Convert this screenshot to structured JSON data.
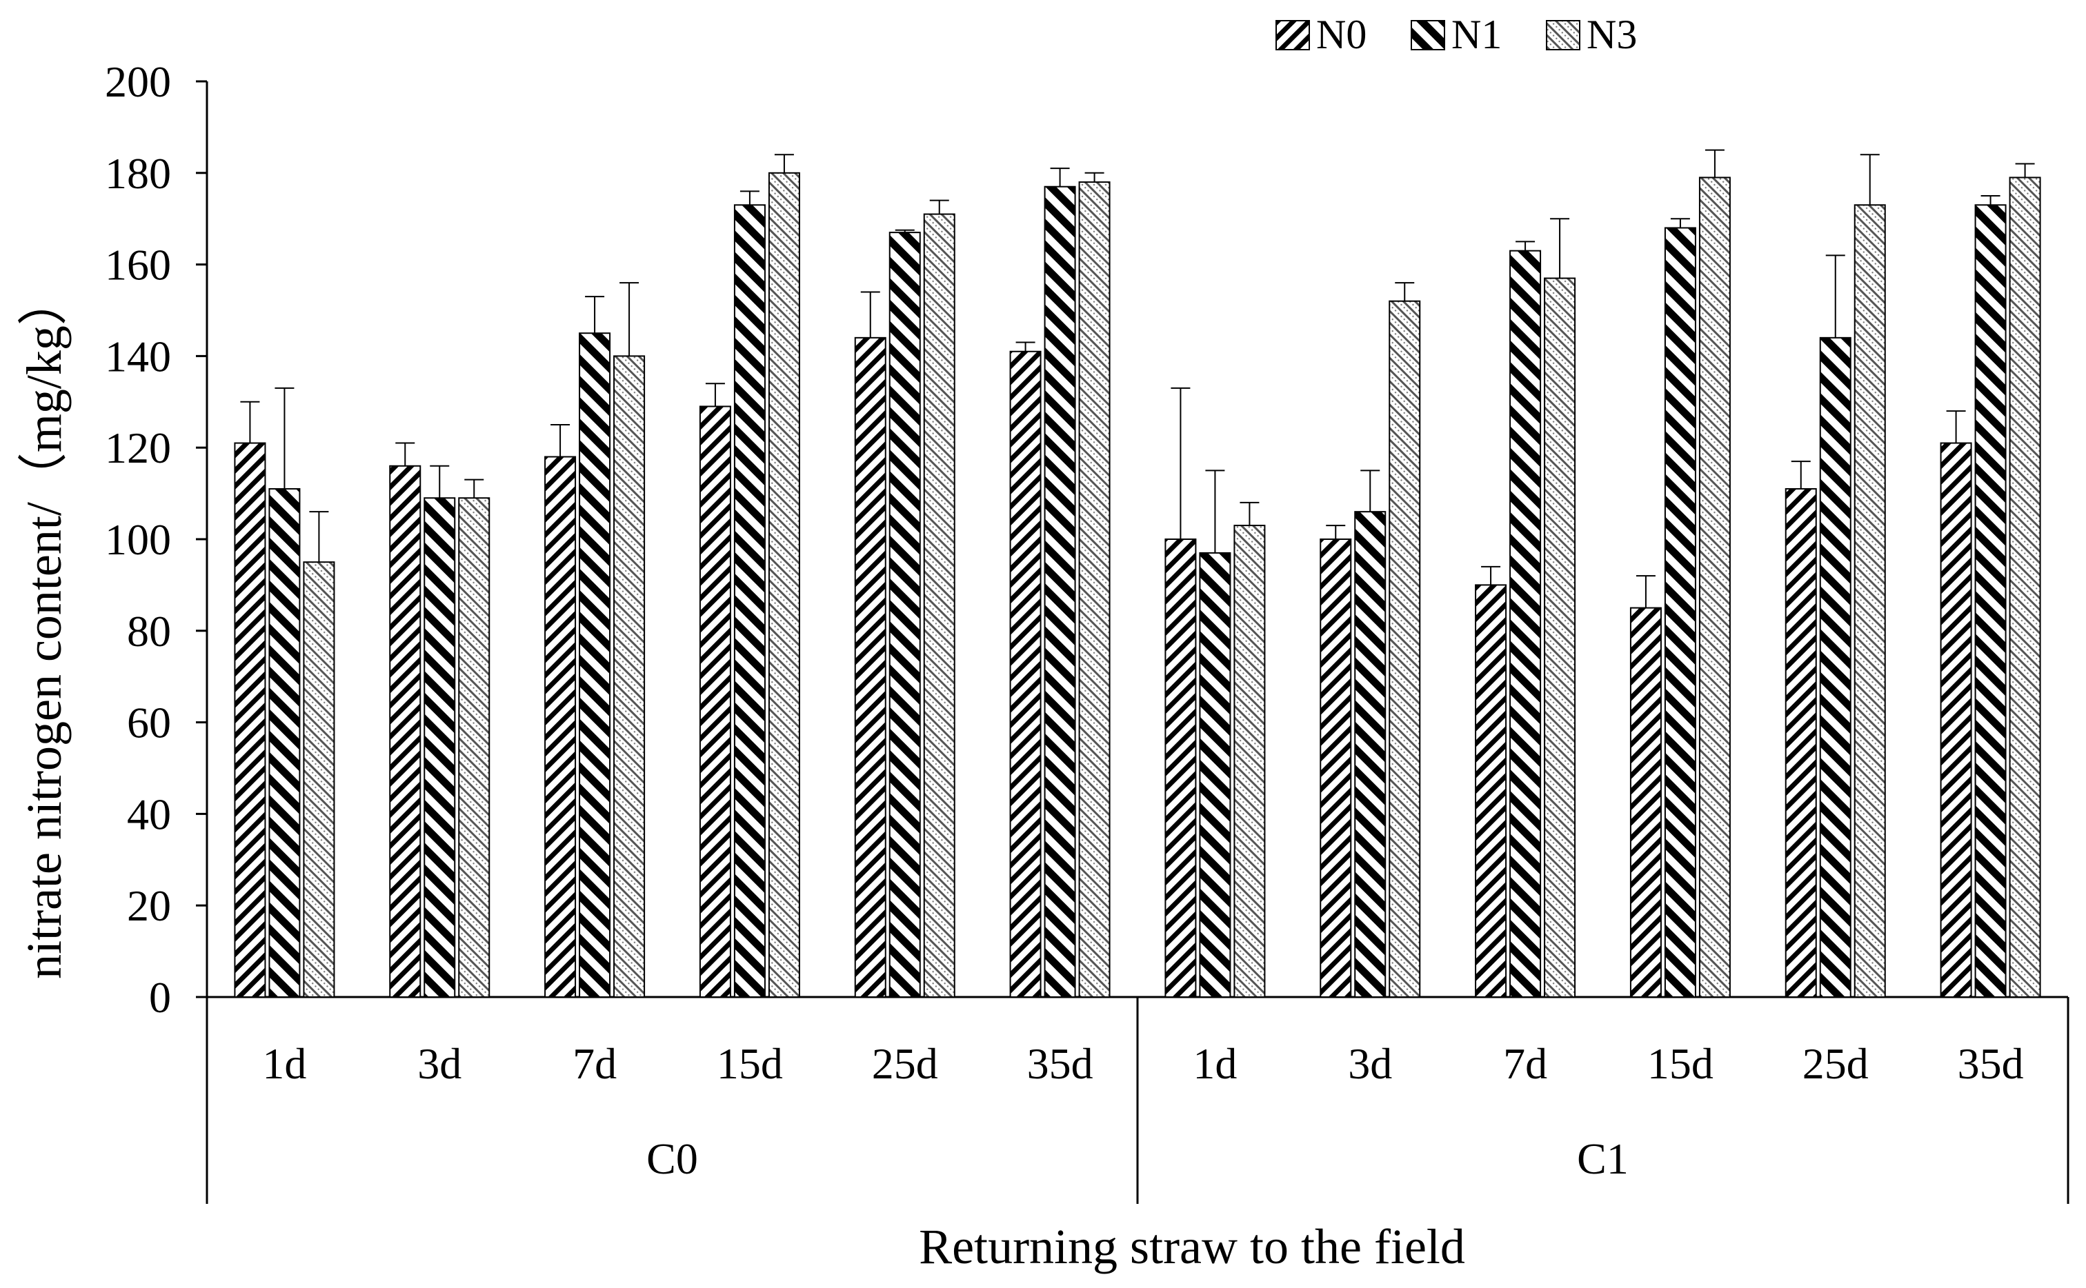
{
  "chart_data": {
    "type": "bar",
    "title": "",
    "xlabel": "Returning straw to the field",
    "ylabel": "nitrate nitrogen content/（mg/kg）",
    "ylim": [
      0,
      200
    ],
    "yticks": [
      0,
      20,
      40,
      60,
      80,
      100,
      120,
      140,
      160,
      180,
      200
    ],
    "grid": false,
    "legend_position": "top-right",
    "groups": [
      "C0",
      "C1"
    ],
    "categories": [
      "1d",
      "3d",
      "7d",
      "15d",
      "25d",
      "35d",
      "1d",
      "3d",
      "7d",
      "15d",
      "25d",
      "35d"
    ],
    "series": [
      {
        "name": "N0",
        "pattern": "diagonal-down",
        "values": [
          121,
          116,
          118,
          129,
          144,
          141,
          100,
          100,
          90,
          85,
          111,
          121
        ],
        "error": [
          9,
          5,
          7,
          5,
          10,
          2,
          33,
          3,
          4,
          7,
          6,
          7
        ]
      },
      {
        "name": "N1",
        "pattern": "diagonal-up",
        "values": [
          111,
          109,
          145,
          173,
          167,
          177,
          97,
          106,
          163,
          168,
          144,
          173
        ],
        "error": [
          22,
          7,
          8,
          3,
          0.5,
          4,
          18,
          9,
          2,
          2,
          18,
          2
        ]
      },
      {
        "name": "N3",
        "pattern": "dotted-diagonal",
        "values": [
          95,
          109,
          140,
          180,
          171,
          178,
          103,
          152,
          157,
          179,
          173,
          179
        ],
        "error": [
          11,
          4,
          16,
          4,
          3,
          2,
          5,
          4,
          13,
          6,
          11,
          3
        ]
      }
    ]
  }
}
